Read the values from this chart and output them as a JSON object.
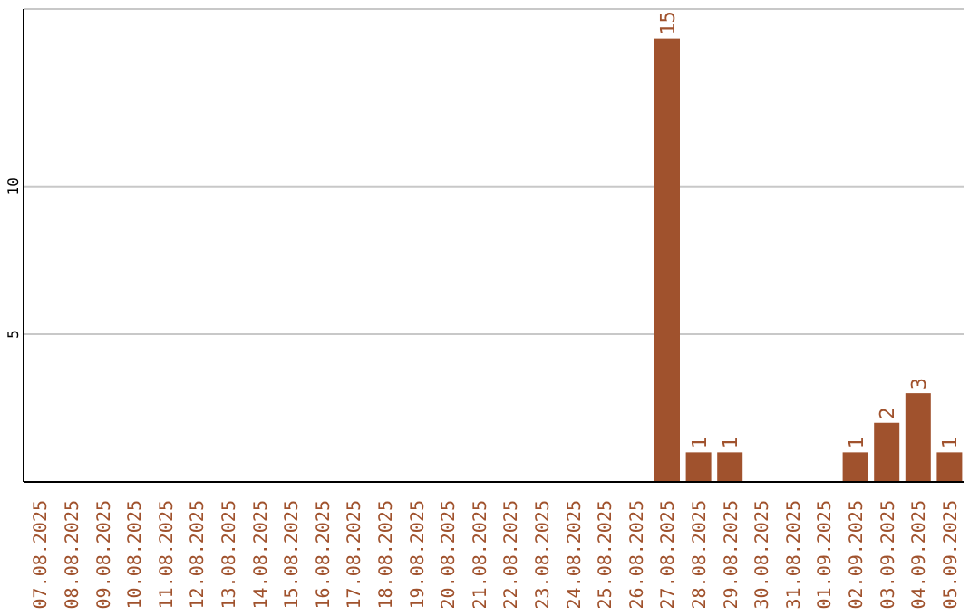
{
  "chart_data": {
    "type": "bar",
    "categories": [
      "07.08.2025",
      "08.08.2025",
      "09.08.2025",
      "10.08.2025",
      "11.08.2025",
      "12.08.2025",
      "13.08.2025",
      "14.08.2025",
      "15.08.2025",
      "16.08.2025",
      "17.08.2025",
      "18.08.2025",
      "19.08.2025",
      "20.08.2025",
      "21.08.2025",
      "22.08.2025",
      "23.08.2025",
      "24.08.2025",
      "25.08.2025",
      "26.08.2025",
      "27.08.2025",
      "28.08.2025",
      "29.08.2025",
      "30.08.2025",
      "31.08.2025",
      "01.09.2025",
      "02.09.2025",
      "03.09.2025",
      "04.09.2025",
      "05.09.2025"
    ],
    "values": [
      0,
      0,
      0,
      0,
      0,
      0,
      0,
      0,
      0,
      0,
      0,
      0,
      0,
      0,
      0,
      0,
      0,
      0,
      0,
      0,
      15,
      1,
      1,
      0,
      0,
      0,
      1,
      2,
      3,
      1
    ],
    "value_labels": [
      null,
      null,
      null,
      null,
      null,
      null,
      null,
      null,
      null,
      null,
      null,
      null,
      null,
      null,
      null,
      null,
      null,
      null,
      null,
      null,
      "15",
      "1",
      "1",
      null,
      null,
      null,
      "1",
      "2",
      "3",
      "1"
    ],
    "color": "#a0522d",
    "ylim": [
      0,
      16
    ],
    "yticks": [
      5,
      10
    ],
    "grid": "y"
  }
}
